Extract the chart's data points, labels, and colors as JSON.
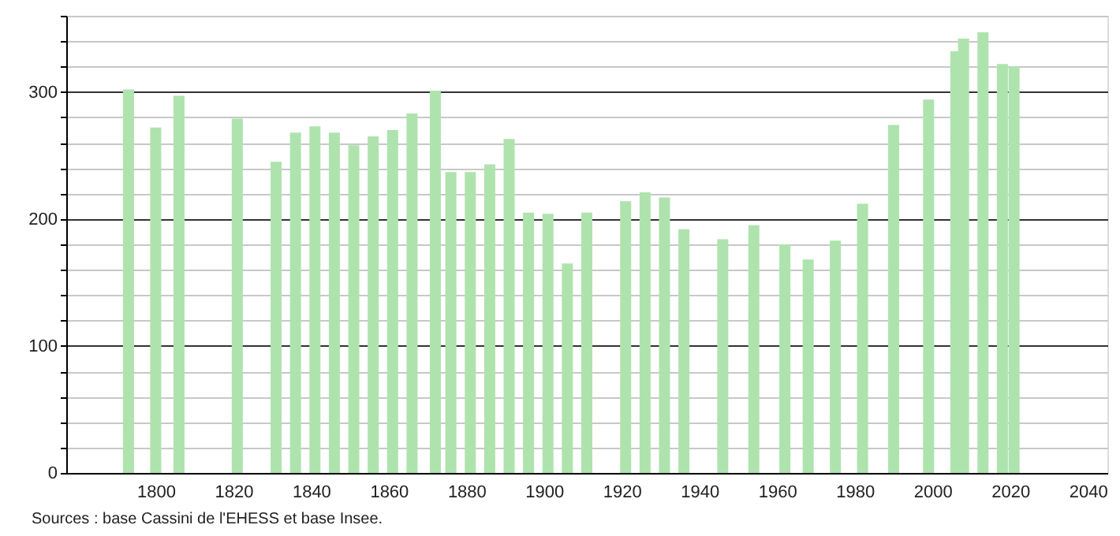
{
  "chart_data": {
    "type": "bar",
    "x": [
      1793,
      1800,
      1806,
      1821,
      1831,
      1836,
      1841,
      1846,
      1851,
      1856,
      1861,
      1866,
      1872,
      1876,
      1881,
      1886,
      1891,
      1896,
      1901,
      1906,
      1911,
      1921,
      1926,
      1931,
      1936,
      1946,
      1954,
      1962,
      1968,
      1975,
      1982,
      1990,
      1999,
      2006,
      2008,
      2013,
      2018,
      2021
    ],
    "values": [
      302,
      272,
      297,
      279,
      245,
      268,
      273,
      268,
      258,
      265,
      270,
      283,
      301,
      237,
      237,
      243,
      263,
      205,
      204,
      165,
      205,
      214,
      221,
      217,
      192,
      184,
      195,
      180,
      168,
      183,
      212,
      274,
      294,
      332,
      342,
      347,
      322,
      320
    ],
    "color": "#aee3ae",
    "xlim": [
      1779,
      2043
    ],
    "xticks": [
      1800,
      1820,
      1840,
      1860,
      1880,
      1900,
      1920,
      1940,
      1960,
      1980,
      2000,
      2020,
      2040
    ],
    "ylim": [
      0,
      360
    ],
    "yticks": [
      0,
      {
        "value": 20,
        "label": null
      },
      {
        "value": 40,
        "label": null
      },
      {
        "value": 60,
        "label": null
      },
      {
        "value": 80,
        "label": null
      },
      100,
      {
        "value": 120,
        "label": null
      },
      {
        "value": 140,
        "label": null
      },
      {
        "value": 160,
        "label": null
      },
      {
        "value": 180,
        "label": null
      },
      200,
      {
        "value": 220,
        "label": null
      },
      {
        "value": 240,
        "label": null
      },
      {
        "value": 260,
        "label": null
      },
      {
        "value": 280,
        "label": null
      },
      300,
      {
        "value": 320,
        "label": null
      },
      {
        "value": 340,
        "label": null
      },
      {
        "value": 360,
        "label": null
      }
    ],
    "grid": "y",
    "annotations": [
      "Sources : base Cassini de l'EHESS et base Insee."
    ]
  }
}
